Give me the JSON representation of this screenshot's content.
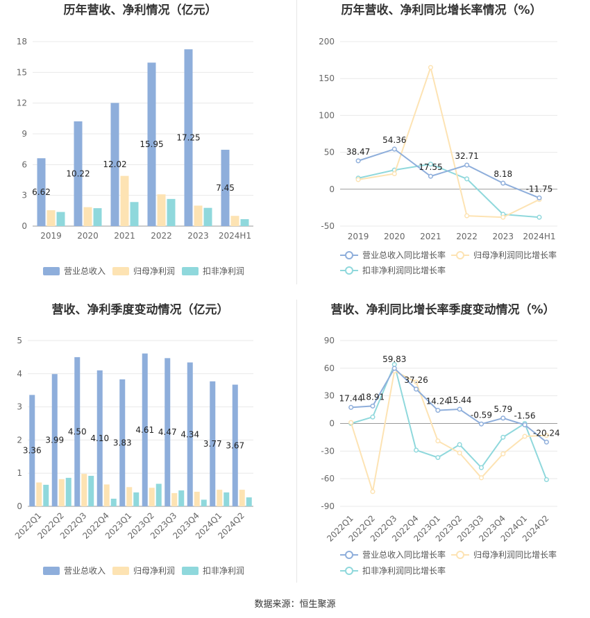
{
  "footer": "数据来源：恒生聚源",
  "colors": {
    "revenue": "#8eaedb",
    "parent": "#fde3b3",
    "deducted": "#8fd8dc"
  },
  "chart_data": [
    {
      "id": "annual-bar",
      "type": "bar",
      "title": "历年营收、净利情况（亿元）",
      "categories": [
        "2019",
        "2020",
        "2021",
        "2022",
        "2023",
        "2024H1"
      ],
      "series": [
        {
          "name": "营业总收入",
          "values": [
            6.62,
            10.22,
            12.02,
            15.95,
            17.25,
            7.45
          ]
        },
        {
          "name": "归母净利润",
          "values": [
            1.55,
            1.85,
            4.9,
            3.1,
            2.0,
            1.0
          ]
        },
        {
          "name": "扣非净利润",
          "values": [
            1.38,
            1.75,
            2.35,
            2.65,
            1.78,
            0.68
          ]
        }
      ],
      "data_labels": [
        "6.62",
        "10.22",
        "12.02",
        "15.95",
        "17.25",
        "7.45"
      ],
      "yticks": [
        "0",
        "3",
        "6",
        "9",
        "12",
        "15",
        "18"
      ],
      "ylim": [
        0,
        18
      ]
    },
    {
      "id": "annual-line",
      "type": "line",
      "title": "历年营收、净利同比增长率情况（%）",
      "categories": [
        "2019",
        "2020",
        "2021",
        "2022",
        "2023",
        "2024H1"
      ],
      "series": [
        {
          "name": "营业总收入同比增长率",
          "values": [
            38.47,
            54.36,
            17.55,
            32.71,
            8.18,
            -11.75
          ]
        },
        {
          "name": "归母净利润同比增长率",
          "values": [
            13,
            21,
            165,
            -36,
            -38,
            -14
          ]
        },
        {
          "name": "扣非净利润同比增长率",
          "values": [
            15,
            26,
            34,
            14,
            -34,
            -38
          ]
        }
      ],
      "data_labels": [
        "38.47",
        "54.36",
        "17.55",
        "32.71",
        "8.18",
        "-11.75"
      ],
      "yticks": [
        "-50",
        "0",
        "50",
        "100",
        "150",
        "200"
      ],
      "ylim": [
        -50,
        200
      ]
    },
    {
      "id": "quarter-bar",
      "type": "bar",
      "title": "营收、净利季度变动情况（亿元）",
      "categories": [
        "2022Q1",
        "2022Q2",
        "2022Q3",
        "2022Q4",
        "2023Q1",
        "2023Q2",
        "2023Q3",
        "2023Q4",
        "2024Q1",
        "2024Q2"
      ],
      "series": [
        {
          "name": "营业总收入",
          "values": [
            3.36,
            3.99,
            4.5,
            4.1,
            3.83,
            4.61,
            4.47,
            4.34,
            3.77,
            3.67
          ]
        },
        {
          "name": "归母净利润",
          "values": [
            0.72,
            0.82,
            0.98,
            0.66,
            0.58,
            0.56,
            0.4,
            0.44,
            0.5,
            0.5
          ]
        },
        {
          "name": "扣非净利润",
          "values": [
            0.65,
            0.86,
            0.92,
            0.23,
            0.42,
            0.68,
            0.48,
            0.2,
            0.42,
            0.27
          ]
        }
      ],
      "data_labels": [
        "3.36",
        "3.99",
        "4.50",
        "4.10",
        "3.83",
        "4.61",
        "4.47",
        "4.34",
        "3.77",
        "3.67"
      ],
      "yticks": [
        "0",
        "1",
        "2",
        "3",
        "4",
        "5"
      ],
      "ylim": [
        0,
        5
      ]
    },
    {
      "id": "quarter-line",
      "type": "line",
      "title": "营收、净利同比增长率季度变动情况（%）",
      "categories": [
        "2022Q1",
        "2022Q2",
        "2022Q3",
        "2022Q4",
        "2023Q1",
        "2023Q2",
        "2023Q3",
        "2023Q4",
        "2024Q1",
        "2024Q2"
      ],
      "series": [
        {
          "name": "营业总收入同比增长率",
          "values": [
            17.44,
            18.91,
            59.83,
            37.26,
            14.24,
            15.44,
            -0.59,
            5.79,
            -1.56,
            -20.24
          ]
        },
        {
          "name": "归母净利润同比增长率",
          "values": [
            1,
            -74,
            57,
            45,
            -19,
            -32,
            -59,
            -33,
            -14,
            -13
          ]
        },
        {
          "name": "扣非净利润同比增长率",
          "values": [
            0,
            7,
            64,
            -29,
            -37,
            -23,
            -48,
            -15,
            0,
            -61
          ]
        }
      ],
      "data_labels": [
        "17.44",
        "18.91",
        "59.83",
        "37.26",
        "14.24",
        "15.44",
        "-0.59",
        "5.79",
        "-1.56",
        "-20.24"
      ],
      "yticks": [
        "-90",
        "-60",
        "-30",
        "0",
        "30",
        "60",
        "90"
      ],
      "ylim": [
        -90,
        90
      ]
    }
  ]
}
